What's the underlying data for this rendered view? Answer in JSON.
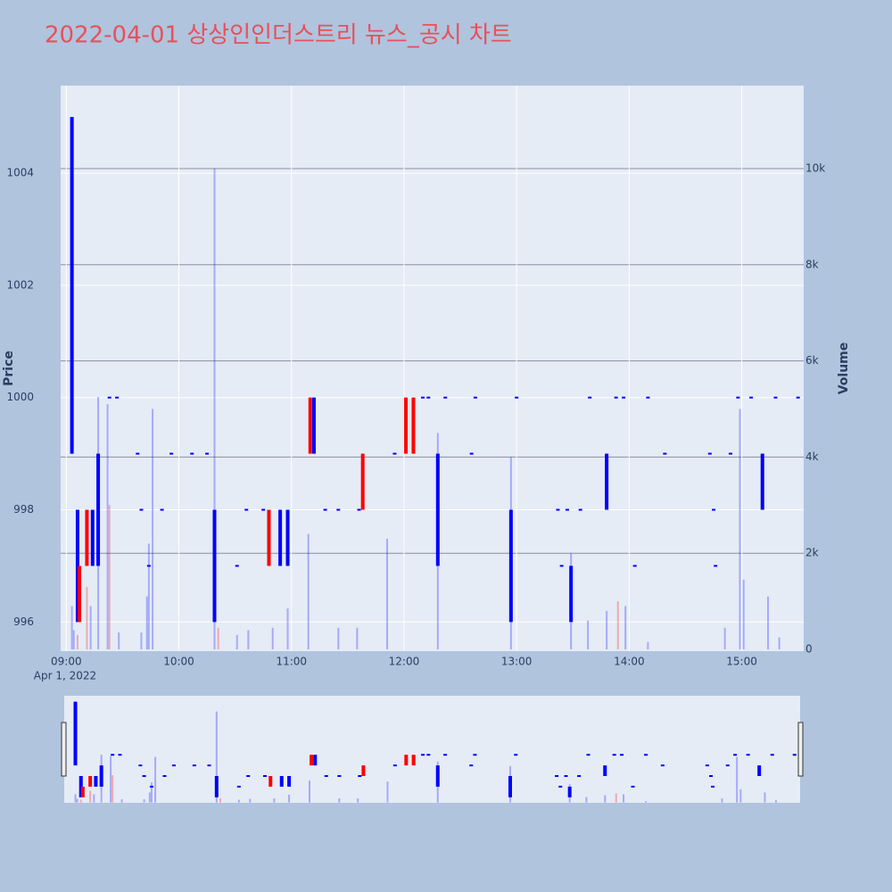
{
  "chart_data": {
    "type": "candlestick",
    "title": "2022-04-01 상상인인더스트리 뉴스_공시 차트",
    "y_title": "Price",
    "y2_title": "Volume",
    "x_date_label": "Apr 1, 2022",
    "xlim": [
      "08:57",
      "15:33"
    ],
    "xticks": [
      "09:00",
      "10:00",
      "11:00",
      "12:00",
      "13:00",
      "14:00",
      "15:00"
    ],
    "ylim": [
      995.48,
      1005.56
    ],
    "yticks": [
      996,
      998,
      1000,
      1002,
      1004
    ],
    "y2lim": [
      -37,
      11725
    ],
    "y2ticks": [
      0,
      {
        "value": 2000,
        "label": "2k"
      },
      {
        "value": 4000,
        "label": "4k"
      },
      {
        "value": 6000,
        "label": "6k"
      },
      {
        "value": 8000,
        "label": "8k"
      },
      {
        "value": 10000,
        "label": "10k"
      }
    ],
    "grid": true,
    "increasing_color": "#ff0000",
    "decreasing_color": "#0000ff",
    "x": [
      "09:03",
      "09:06",
      "09:07",
      "09:11",
      "09:14",
      "09:17",
      "09:23",
      "09:27",
      "09:38",
      "09:40",
      "09:44",
      "09:51",
      "09:56",
      "10:07",
      "10:15",
      "10:19",
      "10:31",
      "10:36",
      "10:45",
      "10:48",
      "10:54",
      "10:58",
      "11:10",
      "11:12",
      "11:18",
      "11:25",
      "11:36",
      "11:38",
      "11:55",
      "12:01",
      "12:05",
      "12:10",
      "12:13",
      "12:18",
      "12:22",
      "12:36",
      "12:38",
      "12:57",
      "13:00",
      "13:22",
      "13:24",
      "13:27",
      "13:29",
      "13:34",
      "13:39",
      "13:48",
      "13:53",
      "13:57",
      "14:03",
      "14:10",
      "14:19",
      "14:43",
      "14:45",
      "14:46",
      "14:54",
      "14:58",
      "15:05",
      "15:11",
      "15:18",
      "15:30"
    ],
    "open": [
      1005,
      998,
      996,
      997,
      998,
      999,
      1000,
      1000,
      999,
      998,
      997,
      998,
      999,
      999,
      999,
      998,
      997,
      998,
      998,
      997,
      998,
      998,
      999,
      1000,
      998,
      998,
      998,
      998,
      999,
      999,
      999,
      1000,
      1000,
      999,
      1000,
      999,
      1000,
      998,
      1000,
      998,
      997,
      998,
      997,
      998,
      1000,
      999,
      1000,
      1000,
      997,
      1000,
      999,
      999,
      998,
      997,
      999,
      1000,
      1000,
      999,
      1000,
      1000
    ],
    "high": [
      1005,
      998,
      997,
      998,
      998,
      999,
      1000,
      1000,
      999,
      998,
      997,
      998,
      999,
      999,
      999,
      998,
      997,
      998,
      998,
      998,
      998,
      998,
      1000,
      1000,
      998,
      998,
      998,
      999,
      999,
      1000,
      1000,
      1000,
      1000,
      999,
      1000,
      999,
      1000,
      998,
      1000,
      998,
      997,
      998,
      997,
      998,
      1000,
      999,
      1000,
      1000,
      997,
      1000,
      999,
      999,
      998,
      997,
      999,
      1000,
      1000,
      999,
      1000,
      1000
    ],
    "low": [
      999,
      996,
      996,
      997,
      997,
      997,
      1000,
      1000,
      999,
      998,
      997,
      998,
      999,
      999,
      999,
      996,
      997,
      998,
      998,
      997,
      997,
      997,
      999,
      999,
      998,
      998,
      998,
      998,
      999,
      999,
      999,
      1000,
      1000,
      997,
      1000,
      999,
      1000,
      996,
      1000,
      998,
      997,
      998,
      996,
      998,
      1000,
      998,
      1000,
      1000,
      997,
      1000,
      999,
      999,
      998,
      997,
      999,
      1000,
      1000,
      998,
      1000,
      1000
    ],
    "close": [
      999,
      996,
      997,
      998,
      997,
      997,
      1000,
      1000,
      999,
      998,
      997,
      998,
      999,
      999,
      999,
      996,
      997,
      998,
      998,
      998,
      997,
      997,
      1000,
      999,
      998,
      998,
      998,
      999,
      999,
      1000,
      1000,
      1000,
      1000,
      997,
      1000,
      999,
      1000,
      996,
      1000,
      998,
      997,
      998,
      996,
      998,
      1000,
      998,
      1000,
      1000,
      997,
      1000,
      999,
      999,
      998,
      997,
      999,
      1000,
      1000,
      998,
      1000,
      1000
    ],
    "volume": [
      {
        "color": "rgba(0,0,255,0.28)",
        "x": [
          "09:03",
          "09:04",
          "09:13",
          "09:17",
          "09:22",
          "09:28",
          "09:40",
          "09:43",
          "09:44",
          "09:46",
          "10:19",
          "10:31",
          "10:37",
          "10:50",
          "10:58",
          "11:09",
          "11:25",
          "11:35",
          "11:51",
          "12:18",
          "12:57",
          "13:29",
          "13:38",
          "13:48",
          "13:58",
          "14:10",
          "14:51",
          "14:59",
          "15:01",
          "15:14",
          "15:20"
        ],
        "values": [
          900,
          400,
          900,
          5250,
          5100,
          350,
          350,
          1100,
          2200,
          5000,
          10000,
          300,
          400,
          450,
          850,
          2400,
          450,
          450,
          2300,
          4500,
          4000,
          2000,
          600,
          800,
          900,
          150,
          450,
          5000,
          1450,
          1100,
          250
        ]
      },
      {
        "color": "rgba(255,0,0,0.28)",
        "x": [
          "09:06",
          "09:11",
          "09:23",
          "10:21",
          "13:54"
        ],
        "values": [
          300,
          1300,
          3000,
          450,
          1000
        ]
      }
    ]
  }
}
